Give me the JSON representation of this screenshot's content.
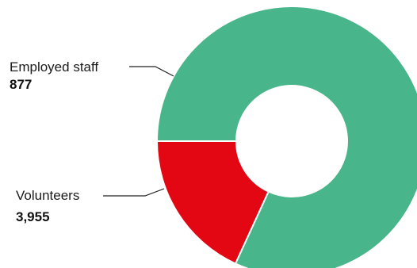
{
  "chart_data": {
    "type": "pie",
    "title": "",
    "categories": [
      "Employed staff",
      "Volunteers"
    ],
    "values": [
      877,
      3955
    ],
    "value_labels": [
      "877",
      "3,955"
    ],
    "colors": [
      "#e30613",
      "#48b58a"
    ],
    "donut": true
  }
}
